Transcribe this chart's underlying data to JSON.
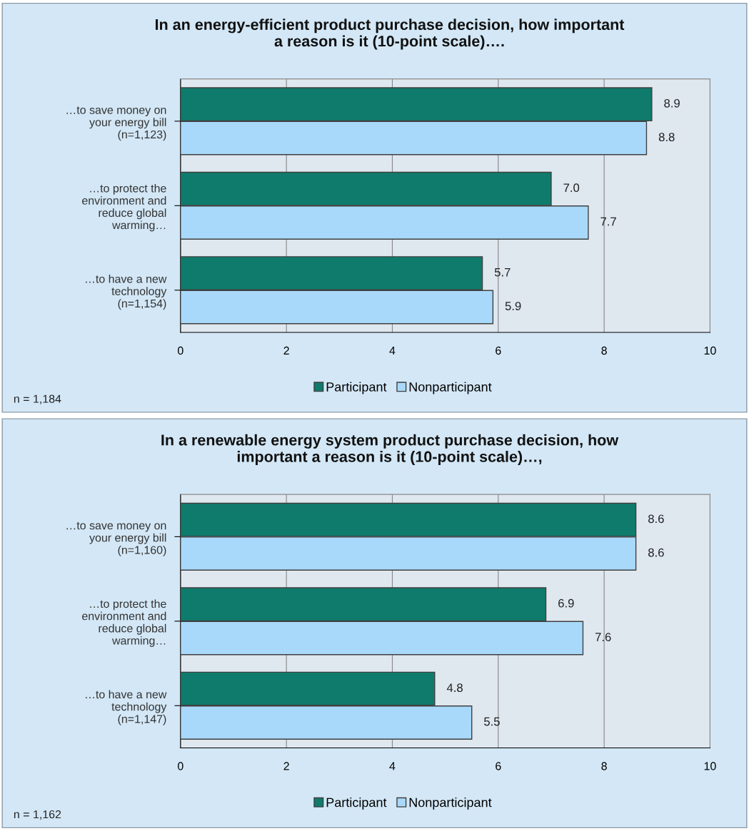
{
  "chart_data": [
    {
      "type": "bar",
      "orientation": "horizontal",
      "title": "In an energy-efficient product purchase decision, how important\na reason is it (10-point scale)….",
      "categories": [
        "…to save money on\nyour energy bill\n(n=1,123)",
        "…to protect the\nenvironment and\nreduce global\nwarming…",
        "…to have a new\ntechnology\n(n=1,154)"
      ],
      "series": [
        {
          "name": "Participant",
          "color": "#0f7b6c",
          "values": [
            8.9,
            7.0,
            5.7
          ],
          "value_labels": [
            "8.9",
            "7.0",
            "5.7"
          ]
        },
        {
          "name": "Nonparticipant",
          "color": "#a9d9fa",
          "values": [
            8.8,
            7.7,
            5.9
          ],
          "value_labels": [
            "8.8",
            "7.7",
            "5.9"
          ]
        }
      ],
      "xlim": [
        0,
        10
      ],
      "xticks": [
        0,
        2,
        4,
        6,
        8,
        10
      ],
      "grid": "x",
      "legend": "bottom",
      "annotations": [
        "n = 1,184"
      ]
    },
    {
      "type": "bar",
      "orientation": "horizontal",
      "title": "In a renewable energy system product purchase decision, how\nimportant a reason is it (10-point scale)…,",
      "categories": [
        "…to save money on\nyour energy bill\n(n=1,160)",
        "…to protect the\nenvironment and\nreduce global\nwarming…",
        "…to have a new\ntechnology\n(n=1,147)"
      ],
      "series": [
        {
          "name": "Participant",
          "color": "#0f7b6c",
          "values": [
            8.6,
            6.9,
            4.8
          ],
          "value_labels": [
            "8.6",
            "6.9",
            "4.8"
          ]
        },
        {
          "name": "Nonparticipant",
          "color": "#a9d9fa",
          "values": [
            8.6,
            7.6,
            5.5
          ],
          "value_labels": [
            "8.6",
            "7.6",
            "5.5"
          ]
        }
      ],
      "xlim": [
        0,
        10
      ],
      "xticks": [
        0,
        2,
        4,
        6,
        8,
        10
      ],
      "grid": "x",
      "legend": "bottom",
      "annotations": [
        "n = 1,162"
      ]
    }
  ]
}
